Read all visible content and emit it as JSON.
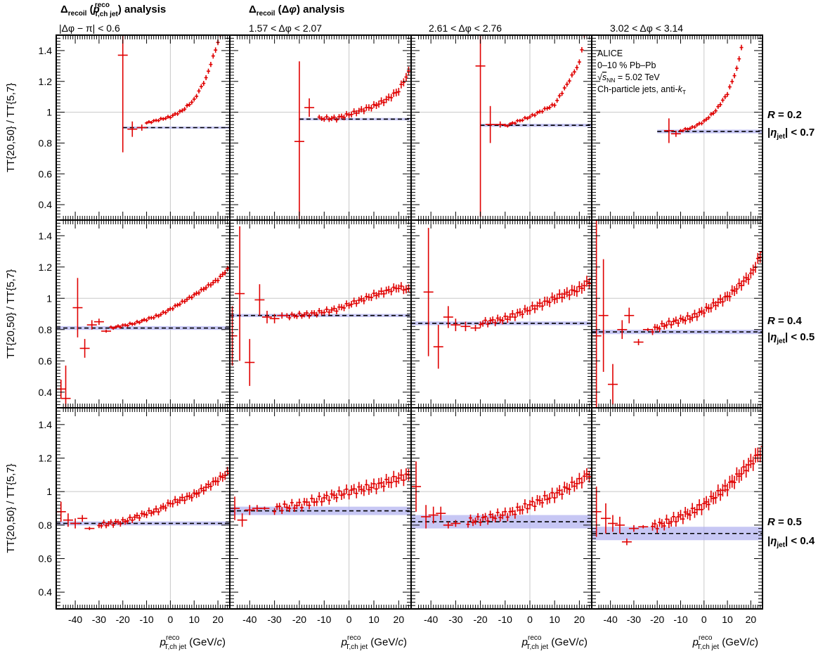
{
  "header": {
    "left_title": "Δrecoil (pT,ch jet) analysis",
    "right_title": "Δrecoil (Δφ) analysis"
  },
  "chart_data": {
    "type": "scatter",
    "ylabel": "TT{20,50} / TT{5,7}",
    "xlabel": "p T,ch jet reco (GeV/c)",
    "xlim": [
      -48,
      25
    ],
    "ylim": [
      0.3,
      1.5
    ],
    "xticks": [
      -40,
      -30,
      -20,
      -10,
      0,
      10,
      20
    ],
    "yticks": [
      0.4,
      0.6,
      0.8,
      1,
      1.2,
      1.4
    ],
    "grid": "vertical line at x = 0 and horizontal line at y = 1",
    "legend_placement": "inside top-right panel (top-left corner)",
    "columns": [
      "|Δφ − π| < 0.6",
      "1.57 < Δφ < 2.07",
      "2.61 < Δφ < 2.76",
      "3.02 < Δφ < 3.14"
    ],
    "rows": [
      {
        "R": "R = 0.2",
        "eta": "|ηjet| < 0.7"
      },
      {
        "R": "R = 0.4",
        "eta": "|ηjet| < 0.5"
      },
      {
        "R": "R = 0.5",
        "eta": "|ηjet| < 0.4"
      }
    ],
    "annotation": [
      "ALICE",
      "0–10 % Pb–Pb",
      "√sNN = 5.02 TeV",
      "Ch-particle jets, anti-kT"
    ],
    "series": [
      {
        "name": "TT{20,50} / TT{5,7}",
        "color": "#e00000"
      },
      {
        "name": "fit constant with uncertainty band",
        "color": "#b4b4f0"
      }
    ],
    "panels": [
      {
        "row": 0,
        "col": 0,
        "level": 0.9,
        "band": 0.007,
        "xstart": -20,
        "pts": [
          [
            -20,
            1.37,
            0.63
          ],
          [
            -16,
            0.89,
            0.05
          ],
          [
            -12,
            0.9,
            0.02
          ]
        ],
        "curve": [
          [
            -10,
            0.93
          ],
          [
            0,
            0.97
          ],
          [
            5,
            1.01
          ],
          [
            10,
            1.08
          ],
          [
            15,
            1.22
          ],
          [
            18,
            1.36
          ],
          [
            21,
            1.5
          ]
        ],
        "cstep": 1.0,
        "cerr": 0.01,
        "noise": 0.005
      },
      {
        "row": 0,
        "col": 1,
        "level": 0.955,
        "band": 0.008,
        "xstart": -20,
        "pts": [
          [
            -20,
            0.81,
            0.52
          ],
          [
            -16,
            1.03,
            0.06
          ]
        ],
        "curve": [
          [
            -12,
            0.96
          ],
          [
            -5,
            0.96
          ],
          [
            0,
            0.985
          ],
          [
            10,
            1.04
          ],
          [
            15,
            1.08
          ],
          [
            20,
            1.14
          ],
          [
            24,
            1.26
          ]
        ],
        "cstep": 1.0,
        "cerr": 0.015,
        "noise": 0.01
      },
      {
        "row": 0,
        "col": 2,
        "level": 0.915,
        "band": 0.01,
        "xstart": -20,
        "pts": [
          [
            -20,
            1.3,
            0.98
          ],
          [
            -16,
            0.92,
            0.12
          ],
          [
            -12,
            0.92,
            0.02
          ]
        ],
        "curve": [
          [
            -10,
            0.91
          ],
          [
            -5,
            0.94
          ],
          [
            0,
            0.97
          ],
          [
            10,
            1.05
          ],
          [
            15,
            1.18
          ],
          [
            20,
            1.32
          ],
          [
            22,
            1.5
          ]
        ],
        "cstep": 1.0,
        "cerr": 0.01,
        "noise": 0.006
      },
      {
        "row": 0,
        "col": 3,
        "level": 0.875,
        "band": 0.012,
        "xstart": -20,
        "pts": [
          [
            -15,
            0.88,
            0.08
          ],
          [
            -12,
            0.86,
            0.02
          ]
        ],
        "curve": [
          [
            -10,
            0.88
          ],
          [
            -5,
            0.9
          ],
          [
            0,
            0.94
          ],
          [
            5,
            1.01
          ],
          [
            10,
            1.12
          ],
          [
            14,
            1.28
          ],
          [
            16,
            1.42
          ]
        ],
        "cstep": 1.0,
        "cerr": 0.01,
        "noise": 0.005
      },
      {
        "row": 1,
        "col": 0,
        "level": 0.81,
        "band": 0.012,
        "xstart": -48,
        "pts": [
          [
            -46,
            0.42,
            0.06
          ],
          [
            -44,
            0.36,
            0.21
          ],
          [
            -39,
            0.94,
            0.19
          ],
          [
            -36,
            0.68,
            0.06
          ],
          [
            -33,
            0.83,
            0.03
          ],
          [
            -30,
            0.85,
            0.02
          ],
          [
            -27,
            0.79,
            0.01
          ]
        ],
        "curve": [
          [
            -25,
            0.81
          ],
          [
            -15,
            0.84
          ],
          [
            -5,
            0.89
          ],
          [
            0,
            0.93
          ],
          [
            10,
            1.02
          ],
          [
            20,
            1.12
          ],
          [
            25,
            1.2
          ]
        ],
        "cstep": 1.0,
        "cerr": 0.01,
        "noise": 0.006
      },
      {
        "row": 1,
        "col": 1,
        "level": 0.89,
        "band": 0.01,
        "xstart": -48,
        "pts": [
          [
            -47,
            0.76,
            0.19
          ],
          [
            -44,
            1.03,
            0.43
          ],
          [
            -40,
            0.59,
            0.15
          ],
          [
            -36,
            0.99,
            0.1
          ],
          [
            -33,
            0.88,
            0.04
          ],
          [
            -30,
            0.87,
            0.03
          ],
          [
            -27,
            0.89,
            0.02
          ]
        ],
        "curve": [
          [
            -25,
            0.885
          ],
          [
            -15,
            0.9
          ],
          [
            -5,
            0.93
          ],
          [
            0,
            0.96
          ],
          [
            10,
            1.02
          ],
          [
            20,
            1.07
          ],
          [
            25,
            1.05
          ]
        ],
        "cstep": 1.0,
        "cerr": 0.015,
        "noise": 0.012
      },
      {
        "row": 1,
        "col": 2,
        "level": 0.84,
        "band": 0.012,
        "xstart": -48,
        "pts": [
          [
            -41,
            1.04,
            0.41
          ],
          [
            -37,
            0.69,
            0.14
          ],
          [
            -33,
            0.88,
            0.07
          ],
          [
            -30,
            0.83,
            0.04
          ],
          [
            -26,
            0.82,
            0.03
          ],
          [
            -22,
            0.81,
            0.02
          ]
        ],
        "curve": [
          [
            -20,
            0.84
          ],
          [
            -10,
            0.87
          ],
          [
            -5,
            0.9
          ],
          [
            0,
            0.93
          ],
          [
            10,
            1.0
          ],
          [
            20,
            1.06
          ],
          [
            25,
            1.12
          ]
        ],
        "cstep": 1.0,
        "cerr": 0.02,
        "noise": 0.015
      },
      {
        "row": 1,
        "col": 3,
        "level": 0.785,
        "band": 0.014,
        "xstart": -48,
        "pts": [
          [
            -46,
            0.76,
            0.82
          ],
          [
            -43,
            0.89,
            0.36
          ],
          [
            -39,
            0.45,
            0.13
          ],
          [
            -35,
            0.8,
            0.06
          ],
          [
            -32,
            0.89,
            0.05
          ],
          [
            -28,
            0.72,
            0.02
          ],
          [
            -24,
            0.8,
            0.01
          ]
        ],
        "curve": [
          [
            -22,
            0.8
          ],
          [
            -15,
            0.84
          ],
          [
            -5,
            0.88
          ],
          [
            0,
            0.92
          ],
          [
            10,
            1.01
          ],
          [
            20,
            1.15
          ],
          [
            25,
            1.3
          ]
        ],
        "cstep": 1.0,
        "cerr": 0.02,
        "noise": 0.015
      },
      {
        "row": 2,
        "col": 0,
        "level": 0.81,
        "band": 0.012,
        "xstart": -48,
        "pts": [
          [
            -46,
            0.88,
            0.06
          ],
          [
            -43,
            0.83,
            0.04
          ],
          [
            -40,
            0.81,
            0.03
          ],
          [
            -37,
            0.84,
            0.02
          ],
          [
            -34,
            0.78,
            0.01
          ]
        ],
        "curve": [
          [
            -30,
            0.8
          ],
          [
            -20,
            0.82
          ],
          [
            -10,
            0.87
          ],
          [
            -5,
            0.89
          ],
          [
            0,
            0.93
          ],
          [
            10,
            0.98
          ],
          [
            20,
            1.07
          ],
          [
            25,
            1.12
          ]
        ],
        "cstep": 1.0,
        "cerr": 0.015,
        "noise": 0.012
      },
      {
        "row": 2,
        "col": 1,
        "level": 0.885,
        "band": 0.025,
        "xstart": -48,
        "pts": [
          [
            -46,
            0.9,
            0.07
          ],
          [
            -43,
            0.83,
            0.04
          ],
          [
            -40,
            0.89,
            0.03
          ],
          [
            -37,
            0.9,
            0.02
          ],
          [
            -34,
            0.9,
            0.01
          ]
        ],
        "curve": [
          [
            -30,
            0.9
          ],
          [
            -20,
            0.92
          ],
          [
            -10,
            0.96
          ],
          [
            0,
            1.0
          ],
          [
            10,
            1.03
          ],
          [
            20,
            1.08
          ],
          [
            25,
            1.1
          ]
        ],
        "cstep": 1.0,
        "cerr": 0.02,
        "noise": 0.02
      },
      {
        "row": 2,
        "col": 2,
        "level": 0.82,
        "band": 0.04,
        "xstart": -48,
        "pts": [
          [
            -46,
            1.03,
            0.15
          ],
          [
            -42,
            0.85,
            0.07
          ],
          [
            -39,
            0.86,
            0.05
          ],
          [
            -36,
            0.87,
            0.04
          ],
          [
            -33,
            0.8,
            0.02
          ],
          [
            -30,
            0.81,
            0.02
          ]
        ],
        "curve": [
          [
            -25,
            0.82
          ],
          [
            -15,
            0.85
          ],
          [
            -8,
            0.87
          ],
          [
            0,
            0.92
          ],
          [
            10,
            0.98
          ],
          [
            20,
            1.06
          ],
          [
            25,
            1.12
          ]
        ],
        "cstep": 1.0,
        "cerr": 0.02,
        "noise": 0.02
      },
      {
        "row": 2,
        "col": 3,
        "level": 0.75,
        "band": 0.04,
        "xstart": -48,
        "pts": [
          [
            -46,
            0.88,
            0.15
          ],
          [
            -42,
            0.84,
            0.09
          ],
          [
            -39,
            0.81,
            0.05
          ],
          [
            -36,
            0.8,
            0.05
          ],
          [
            -33,
            0.7,
            0.02
          ],
          [
            -30,
            0.78,
            0.02
          ],
          [
            -26,
            0.79,
            0.01
          ]
        ],
        "curve": [
          [
            -22,
            0.79
          ],
          [
            -15,
            0.82
          ],
          [
            -5,
            0.88
          ],
          [
            0,
            0.92
          ],
          [
            10,
            1.03
          ],
          [
            20,
            1.17
          ],
          [
            25,
            1.25
          ]
        ],
        "cstep": 1.0,
        "cerr": 0.025,
        "noise": 0.02
      }
    ]
  }
}
